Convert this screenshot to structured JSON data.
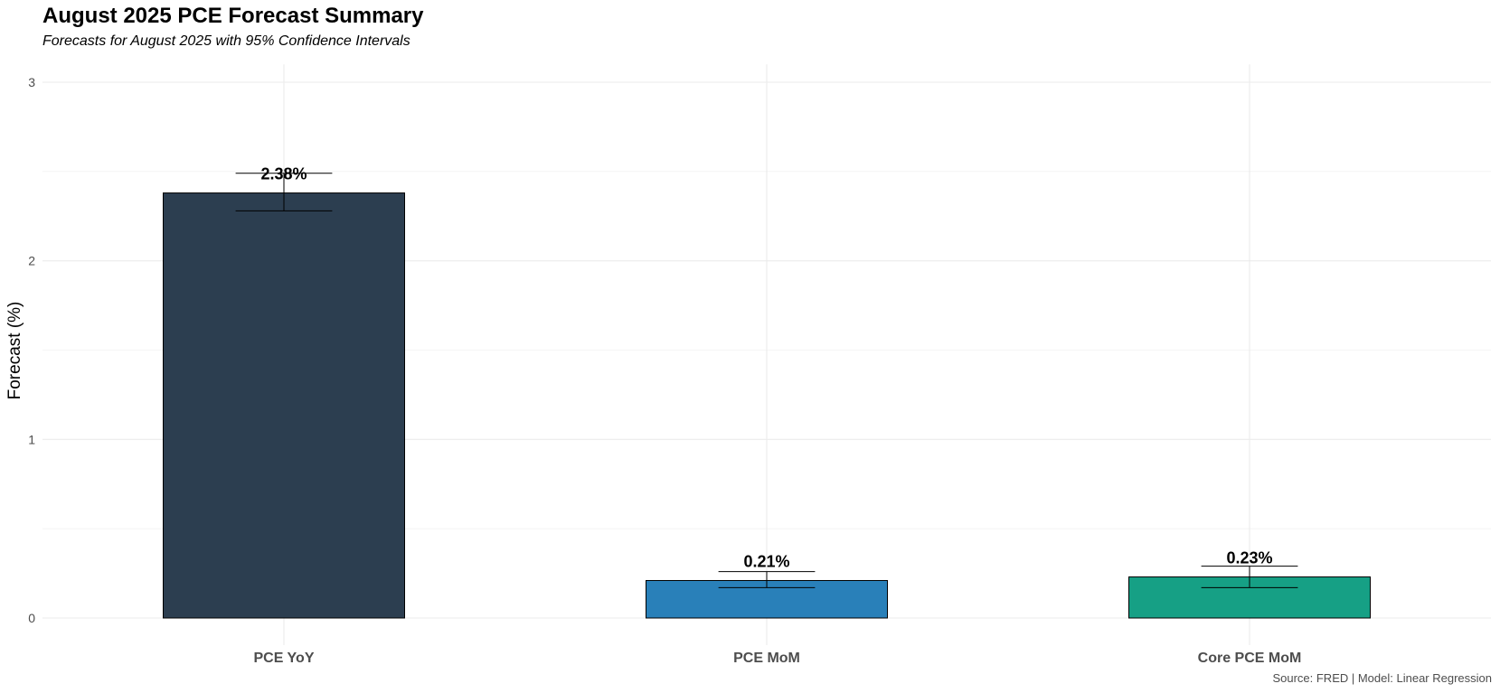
{
  "chart_data": {
    "type": "bar",
    "title": "August 2025 PCE Forecast Summary",
    "subtitle": "Forecasts for August 2025 with 95% Confidence Intervals",
    "caption": "Source: FRED | Model: Linear Regression",
    "xlabel": "",
    "ylabel": "Forecast (%)",
    "ylim": [
      0,
      3.1
    ],
    "yticks": [
      0,
      1,
      2,
      3
    ],
    "ytick_labels": [
      "0",
      "1",
      "2",
      "3"
    ],
    "grid": true,
    "legend": "none",
    "categories": [
      "PCE YoY",
      "PCE MoM",
      "Core PCE MoM"
    ],
    "values": [
      2.38,
      0.21,
      0.23
    ],
    "value_labels": [
      "2.38%",
      "0.21%",
      "0.23%"
    ],
    "ci_lower": [
      2.28,
      0.17,
      0.17
    ],
    "ci_upper": [
      2.49,
      0.26,
      0.29
    ],
    "colors": [
      "#2c3e50",
      "#2980b9",
      "#16a085"
    ]
  }
}
